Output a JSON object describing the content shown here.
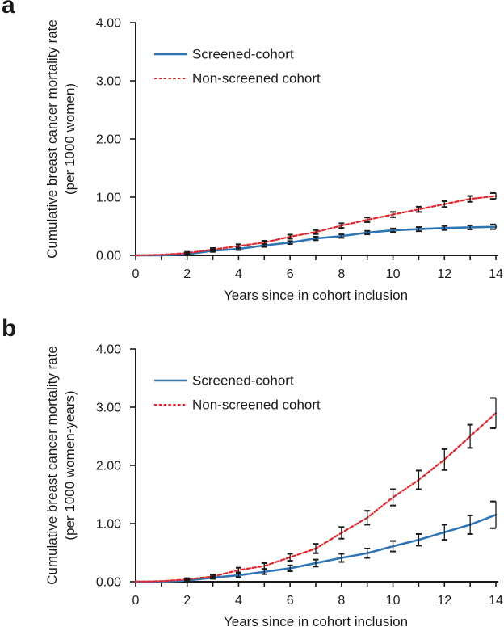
{
  "figure": {
    "background": "#ffffff",
    "ink_color": "#1a1a1a"
  },
  "chart_data": [
    {
      "type": "line",
      "panel_letter": "a",
      "title": "",
      "xlabel": "Years since in cohort inclusion",
      "ylabel_line1": "Cumulative breast cancer mortality rate",
      "ylabel_line2": "(per 1000 women)",
      "xlim": [
        0,
        14
      ],
      "ylim": [
        0,
        4
      ],
      "grid": false,
      "legend_position": "upper-left-inside",
      "xtick_labels": [
        "0",
        "2",
        "4",
        "6",
        "8",
        "10",
        "12",
        "14"
      ],
      "ytick_labels": [
        "0.00",
        "1.00",
        "2.00",
        "3.00",
        "4.00"
      ],
      "error_bar_color": "#1a1a1a",
      "x": [
        0,
        1,
        2,
        3,
        4,
        5,
        6,
        7,
        8,
        9,
        10,
        11,
        12,
        13,
        14
      ],
      "series": [
        {
          "name": "Screened-cohort",
          "color": "#2E75B6",
          "style": "solid",
          "values": [
            0,
            0.0,
            0.02,
            0.08,
            0.11,
            0.17,
            0.22,
            0.29,
            0.33,
            0.39,
            0.43,
            0.45,
            0.47,
            0.48,
            0.49
          ],
          "errors": [
            0,
            0,
            0.015,
            0.02,
            0.02,
            0.025,
            0.025,
            0.03,
            0.03,
            0.03,
            0.03,
            0.035,
            0.035,
            0.035,
            0.04
          ]
        },
        {
          "name": "Non-screened cohort",
          "color": "#E8242B",
          "style": "dashed",
          "values": [
            0,
            0.01,
            0.04,
            0.1,
            0.16,
            0.22,
            0.32,
            0.4,
            0.51,
            0.61,
            0.7,
            0.79,
            0.88,
            0.97,
            1.02
          ],
          "errors": [
            0,
            0,
            0.02,
            0.025,
            0.03,
            0.03,
            0.035,
            0.035,
            0.04,
            0.04,
            0.045,
            0.045,
            0.05,
            0.05,
            0.05
          ]
        }
      ]
    },
    {
      "type": "line",
      "panel_letter": "b",
      "title": "",
      "xlabel": "Years since in cohort inclusion",
      "ylabel_line1": "Cumulative breast cancer mortality rate",
      "ylabel_line2": "(per 1000 women-years)",
      "xlim": [
        0,
        14
      ],
      "ylim": [
        0,
        4
      ],
      "grid": false,
      "legend_position": "upper-left-inside",
      "xtick_labels": [
        "0",
        "2",
        "4",
        "6",
        "8",
        "10",
        "12",
        "14"
      ],
      "ytick_labels": [
        "0.00",
        "1.00",
        "2.00",
        "3.00",
        "4.00"
      ],
      "error_bar_color": "#1a1a1a",
      "x": [
        0,
        1,
        2,
        3,
        4,
        5,
        6,
        7,
        8,
        9,
        10,
        11,
        12,
        13,
        14
      ],
      "series": [
        {
          "name": "Screened-cohort",
          "color": "#2E75B6",
          "style": "solid",
          "values": [
            0,
            0.0,
            0.02,
            0.07,
            0.11,
            0.17,
            0.23,
            0.32,
            0.41,
            0.49,
            0.61,
            0.72,
            0.85,
            0.98,
            1.15
          ],
          "errors": [
            0,
            0,
            0.015,
            0.02,
            0.03,
            0.04,
            0.05,
            0.06,
            0.07,
            0.08,
            0.09,
            0.1,
            0.13,
            0.16,
            0.23
          ]
        },
        {
          "name": "Non-screened cohort",
          "color": "#E8242B",
          "style": "dashed",
          "values": [
            0,
            0.01,
            0.04,
            0.09,
            0.2,
            0.27,
            0.42,
            0.57,
            0.84,
            1.1,
            1.45,
            1.75,
            2.1,
            2.5,
            2.9
          ],
          "errors": [
            0,
            0,
            0.02,
            0.03,
            0.04,
            0.05,
            0.06,
            0.08,
            0.1,
            0.12,
            0.14,
            0.16,
            0.18,
            0.2,
            0.26
          ]
        }
      ]
    }
  ]
}
